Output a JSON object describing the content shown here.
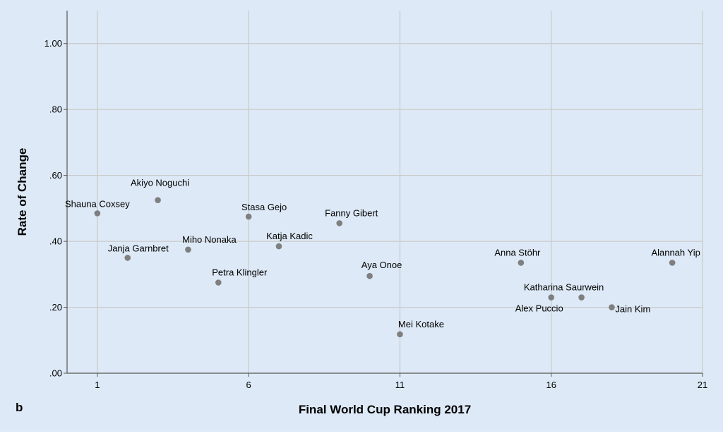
{
  "panel_label": "b",
  "colors": {
    "background": "#dde9f6",
    "grid": "#c9c9c9",
    "axis": "#555555",
    "point": "#7f7f7f"
  },
  "chart_data": {
    "type": "scatter",
    "xlabel": "Final World Cup Ranking 2017",
    "ylabel": "Rate of Change",
    "xlim": [
      0,
      21
    ],
    "ylim": [
      0,
      1.1
    ],
    "xticks": [
      1,
      6,
      11,
      16,
      21
    ],
    "xtick_labels": [
      "1",
      "6",
      "11",
      "16",
      "21"
    ],
    "yticks": [
      0,
      0.2,
      0.4,
      0.6,
      0.8,
      1.0
    ],
    "ytick_labels": [
      ".00",
      ".20",
      ".40",
      ".60",
      ".80",
      "1.00"
    ],
    "grid": true,
    "points": [
      {
        "label": "Shauna Coxsey",
        "x": 1,
        "y": 0.485
      },
      {
        "label": "Janja Garnbret",
        "x": 2,
        "y": 0.35
      },
      {
        "label": "Akiyo Noguchi",
        "x": 3,
        "y": 0.525
      },
      {
        "label": "Miho Nonaka",
        "x": 4,
        "y": 0.375
      },
      {
        "label": "Petra Klingler",
        "x": 5,
        "y": 0.275
      },
      {
        "label": "Stasa Gejo",
        "x": 6,
        "y": 0.475
      },
      {
        "label": "Katja Kadic",
        "x": 7,
        "y": 0.385
      },
      {
        "label": "Fanny Gibert",
        "x": 9,
        "y": 0.455
      },
      {
        "label": "Aya Onoe",
        "x": 10,
        "y": 0.295
      },
      {
        "label": "Mei Kotake",
        "x": 11,
        "y": 0.118
      },
      {
        "label": "Anna Stöhr",
        "x": 15,
        "y": 0.335
      },
      {
        "label": "Alex Puccio",
        "x": 16,
        "y": 0.23
      },
      {
        "label": "Katharina Saurwein",
        "x": 17,
        "y": 0.23
      },
      {
        "label": "Jain Kim",
        "x": 18,
        "y": 0.2
      },
      {
        "label": "Alannah Yip",
        "x": 20,
        "y": 0.335
      }
    ]
  }
}
